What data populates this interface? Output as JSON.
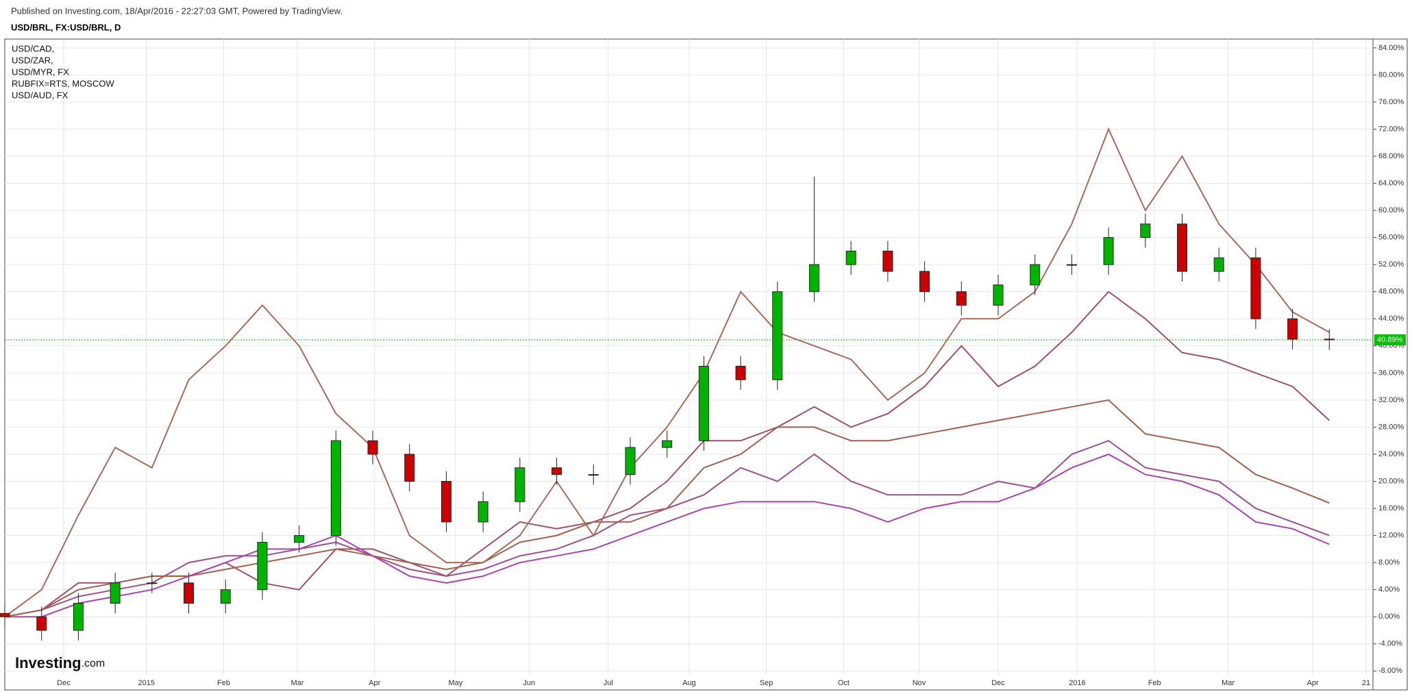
{
  "header": {
    "published": "Published on Investing.com, 18/Apr/2016 - 22:27:03 GMT, Powered by TradingView.",
    "symbol": "USD/BRL, FX:USD/BRL, D"
  },
  "logo": {
    "name": "Investing",
    "suffix": ".com"
  },
  "chart_data": {
    "type": "candlestick",
    "x": [
      0,
      2,
      4,
      6,
      8,
      10,
      12,
      14,
      16,
      18,
      20,
      22,
      24,
      26,
      28,
      30,
      32,
      34,
      36,
      38,
      40,
      42,
      44,
      46,
      48,
      50,
      52,
      54,
      56,
      58,
      60,
      62,
      64,
      66,
      68,
      70,
      72
    ],
    "open": [
      0.5,
      0,
      -2,
      2,
      5,
      5,
      2,
      4,
      11,
      12,
      26,
      24,
      20,
      14,
      17,
      22,
      21,
      21,
      25,
      26,
      37,
      35,
      48,
      52,
      54,
      51,
      48,
      46,
      49,
      52,
      52,
      56,
      58,
      51,
      53,
      44,
      41
    ],
    "high": [
      2,
      1.5,
      3.5,
      6.5,
      6.5,
      6.5,
      5.5,
      12.5,
      13.5,
      27.5,
      27.5,
      25.5,
      21.5,
      18.5,
      23.5,
      23.5,
      22.5,
      26.5,
      27.5,
      38.5,
      38.5,
      49.5,
      65,
      55.5,
      55.5,
      52.5,
      49.5,
      50.5,
      53.5,
      53.5,
      57.5,
      59.5,
      59.5,
      54.5,
      54.5,
      45.5,
      42.5
    ],
    "low": [
      -1.5,
      -3.5,
      -3.5,
      0.5,
      3.5,
      0.5,
      0.5,
      2.5,
      9.5,
      10.5,
      22.5,
      18.5,
      12.5,
      12.5,
      15.5,
      19.5,
      19.5,
      19.5,
      23.5,
      24.5,
      33.5,
      33.5,
      46.5,
      50.5,
      49.5,
      46.5,
      44.5,
      44.5,
      47.5,
      50.5,
      50.5,
      54.5,
      49.5,
      49.5,
      42.5,
      39.5,
      39.39
    ],
    "close": [
      0,
      -2,
      2,
      5,
      5,
      2,
      4,
      11,
      12,
      26,
      24,
      20,
      14,
      17,
      22,
      21,
      21,
      25,
      26,
      37,
      35,
      48,
      52,
      54,
      51,
      48,
      46,
      49,
      52,
      52,
      56,
      58,
      51,
      53,
      44,
      41,
      40.89
    ],
    "up_color": "#00b300",
    "down_color": "#cc0000",
    "series": [
      {
        "name": "USD/CAD,",
        "color": "#9c4f8c",
        "values": [
          0,
          1,
          3,
          4,
          5,
          8,
          9,
          9,
          10,
          11,
          9,
          7,
          6,
          7,
          9,
          10,
          12,
          15,
          16,
          18,
          22,
          20,
          24,
          20,
          18,
          18,
          18,
          20,
          19,
          24,
          26,
          22,
          21,
          20,
          16,
          14,
          12
        ]
      },
      {
        "name": "USD/ZAR,",
        "color": "#a0506a",
        "values": [
          0,
          1,
          5,
          5,
          6,
          6,
          8,
          5,
          4,
          10,
          10,
          8,
          6,
          10,
          14,
          13,
          14,
          16,
          20,
          26,
          26,
          28,
          31,
          28,
          30,
          34,
          40,
          34,
          37,
          42,
          48,
          44,
          39,
          38,
          36,
          34,
          29
        ]
      },
      {
        "name": "USD/MYR, FX",
        "color": "#a0604a",
        "values": [
          0,
          1,
          4,
          5,
          6,
          6,
          7,
          8,
          9,
          10,
          9,
          8,
          7,
          8,
          11,
          12,
          14,
          14,
          16,
          22,
          24,
          28,
          28,
          26,
          26,
          27,
          28,
          29,
          30,
          31,
          32,
          27,
          26,
          25,
          21,
          19,
          16.8
        ]
      },
      {
        "name": "RUBFIX=RTS, MOSCOW",
        "color": "#a86a56",
        "values": [
          0,
          4,
          15,
          25,
          22,
          35,
          40,
          46,
          40,
          30,
          25,
          12,
          8,
          8,
          12,
          20,
          12,
          22,
          28,
          36,
          48,
          42,
          40,
          38,
          32,
          36,
          44,
          44,
          48,
          58,
          72,
          60,
          68,
          58,
          52,
          45,
          42
        ]
      },
      {
        "name": "USD/AUD, FX",
        "color": "#a843b0",
        "values": [
          0,
          0,
          2,
          3,
          4,
          6,
          8,
          10,
          10,
          12,
          9,
          6,
          5,
          6,
          8,
          9,
          10,
          12,
          14,
          16,
          17,
          17,
          17,
          16,
          14,
          16,
          17,
          17,
          19,
          22,
          24,
          21,
          20,
          18,
          14,
          13,
          10.7
        ]
      }
    ],
    "xlim": [
      0,
      74
    ],
    "xticks": [
      {
        "value": 3.2,
        "label": "Dec"
      },
      {
        "value": 7.7,
        "label": "2015"
      },
      {
        "value": 11.9,
        "label": "Feb"
      },
      {
        "value": 15.9,
        "label": "Mar"
      },
      {
        "value": 20.1,
        "label": "Apr"
      },
      {
        "value": 24.5,
        "label": "May"
      },
      {
        "value": 28.5,
        "label": "Jun"
      },
      {
        "value": 32.8,
        "label": "Jul"
      },
      {
        "value": 37.2,
        "label": "Aug"
      },
      {
        "value": 41.4,
        "label": "Sep"
      },
      {
        "value": 45.6,
        "label": "Oct"
      },
      {
        "value": 49.7,
        "label": "Nov"
      },
      {
        "value": 54.0,
        "label": "Dec"
      },
      {
        "value": 58.3,
        "label": "2016"
      },
      {
        "value": 62.5,
        "label": "Feb"
      },
      {
        "value": 66.5,
        "label": "Mar"
      },
      {
        "value": 71.1,
        "label": "Apr"
      },
      {
        "value": 74.0,
        "label": "21"
      }
    ],
    "ylim": [
      -10.7,
      85.3
    ],
    "yticks": [
      {
        "value": -8,
        "label": "-8.00%"
      },
      {
        "value": -4,
        "label": "-4.00%"
      },
      {
        "value": 0,
        "label": "0.00%"
      },
      {
        "value": 4,
        "label": "4.00%"
      },
      {
        "value": 8,
        "label": "8.00%"
      },
      {
        "value": 12,
        "label": "12.00%"
      },
      {
        "value": 16,
        "label": "16.00%"
      },
      {
        "value": 20,
        "label": "20.00%"
      },
      {
        "value": 24,
        "label": "24.00%"
      },
      {
        "value": 28,
        "label": "28.00%"
      },
      {
        "value": 32,
        "label": "32.00%"
      },
      {
        "value": 36,
        "label": "36.00%"
      },
      {
        "value": 40,
        "label": "40.00%"
      },
      {
        "value": 44,
        "label": "44.00%"
      },
      {
        "value": 48,
        "label": "48.00%"
      },
      {
        "value": 52,
        "label": "52.00%"
      },
      {
        "value": 56,
        "label": "56.00%"
      },
      {
        "value": 60,
        "label": "60.00%"
      },
      {
        "value": 64,
        "label": "64.00%"
      },
      {
        "value": 68,
        "label": "68.00%"
      },
      {
        "value": 72,
        "label": "72.00%"
      },
      {
        "value": 76,
        "label": "76.00%"
      },
      {
        "value": 80,
        "label": "80.00%"
      },
      {
        "value": 84,
        "label": "84.00%"
      }
    ],
    "last": {
      "value": 40.89,
      "label": "40.89%"
    },
    "last_color": "#00c000",
    "grid": true
  }
}
